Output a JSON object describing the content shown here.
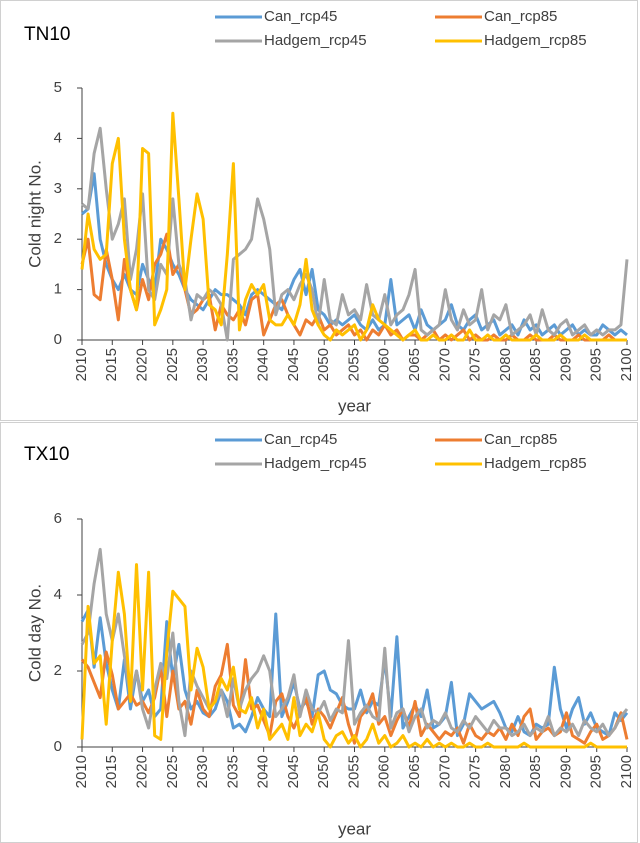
{
  "chart_data": [
    {
      "type": "line",
      "title": "TN10",
      "y_label": "Cold night No.",
      "x_label": "year",
      "legend": "top",
      "x": [
        2010,
        2011,
        2012,
        2013,
        2014,
        2015,
        2016,
        2017,
        2018,
        2019,
        2020,
        2021,
        2022,
        2023,
        2024,
        2025,
        2026,
        2027,
        2028,
        2029,
        2030,
        2031,
        2032,
        2033,
        2034,
        2035,
        2036,
        2037,
        2038,
        2039,
        2040,
        2041,
        2042,
        2043,
        2044,
        2045,
        2046,
        2047,
        2048,
        2049,
        2050,
        2051,
        2052,
        2053,
        2054,
        2055,
        2056,
        2057,
        2058,
        2059,
        2060,
        2061,
        2062,
        2063,
        2064,
        2065,
        2066,
        2067,
        2068,
        2069,
        2070,
        2071,
        2072,
        2073,
        2074,
        2075,
        2076,
        2077,
        2078,
        2079,
        2080,
        2081,
        2082,
        2083,
        2084,
        2085,
        2086,
        2087,
        2088,
        2089,
        2090,
        2091,
        2092,
        2093,
        2094,
        2095,
        2096,
        2097,
        2098,
        2099,
        2100
      ],
      "xlim": [
        2010,
        2100
      ],
      "xticks": [
        2010,
        2015,
        2020,
        2025,
        2030,
        2035,
        2040,
        2045,
        2050,
        2055,
        2060,
        2065,
        2070,
        2075,
        2080,
        2085,
        2090,
        2095,
        2100
      ],
      "ylim": [
        0,
        5
      ],
      "yticks": [
        0,
        1,
        2,
        3,
        4,
        5
      ],
      "series": [
        {
          "name": "Can_rcp45",
          "color": "#5b9bd5",
          "values": [
            2.5,
            2.6,
            3.3,
            2.0,
            1.5,
            1.2,
            1.0,
            1.3,
            1.0,
            0.9,
            1.5,
            1.2,
            1.0,
            2.0,
            1.8,
            1.5,
            1.3,
            1.0,
            0.8,
            0.7,
            0.6,
            0.8,
            1.0,
            0.9,
            0.9,
            0.8,
            0.7,
            0.5,
            0.9,
            1.0,
            0.9,
            0.8,
            0.7,
            0.6,
            0.9,
            1.2,
            1.4,
            0.9,
            1.4,
            0.6,
            0.5,
            0.3,
            0.4,
            0.3,
            0.4,
            0.5,
            0.3,
            0.2,
            0.4,
            0.2,
            0.3,
            1.2,
            0.3,
            0.4,
            0.5,
            0.2,
            0.6,
            0.3,
            0.2,
            0.3,
            0.4,
            0.7,
            0.3,
            0.2,
            0.4,
            0.5,
            0.2,
            0.3,
            0.4,
            0.1,
            0.2,
            0.3,
            0.1,
            0.4,
            0.2,
            0.3,
            0.1,
            0.2,
            0.3,
            0.1,
            0.2,
            0.3,
            0.1,
            0.2,
            0.1,
            0.1,
            0.3,
            0.2,
            0.1,
            0.2,
            0.1
          ]
        },
        {
          "name": "Can_rcp85",
          "color": "#ed7d31",
          "values": [
            1.5,
            2.0,
            0.9,
            0.8,
            1.8,
            1.2,
            0.4,
            1.6,
            1.0,
            0.6,
            1.2,
            0.8,
            1.5,
            1.7,
            2.1,
            1.3,
            1.5,
            1.0,
            0.5,
            0.6,
            0.8,
            0.9,
            0.2,
            0.7,
            0.5,
            0.4,
            0.6,
            0.3,
            0.8,
            0.9,
            0.1,
            0.4,
            0.7,
            0.8,
            0.5,
            0.3,
            0.1,
            0.4,
            0.3,
            0.5,
            0.2,
            0.3,
            0.1,
            0.2,
            0.3,
            0.1,
            0.2,
            0.0,
            0.2,
            0.1,
            0.3,
            0.1,
            0.2,
            0.0,
            0.1,
            0.1,
            0.0,
            0.1,
            0.2,
            0.0,
            0.1,
            0.0,
            0.1,
            0.2,
            0.0,
            0.1,
            0.0,
            0.0,
            0.1,
            0.0,
            0.0,
            0.1,
            0.0,
            0.0,
            0.1,
            0.0,
            0.0,
            0.0,
            0.1,
            0.0,
            0.0,
            0.0,
            0.1,
            0.0,
            0.0,
            0.0,
            0.0,
            0.1,
            0.0,
            0.0,
            0.0
          ]
        },
        {
          "name": "Hadgem_rcp45",
          "color": "#a5a5a5",
          "values": [
            2.7,
            2.6,
            3.7,
            4.2,
            3.0,
            2.0,
            2.3,
            2.8,
            1.2,
            1.8,
            2.9,
            1.0,
            0.8,
            1.5,
            1.3,
            2.8,
            1.5,
            1.2,
            0.4,
            0.9,
            0.8,
            1.0,
            0.9,
            0.7,
            0.0,
            1.6,
            1.7,
            1.8,
            2.0,
            2.8,
            2.4,
            1.8,
            0.5,
            0.9,
            1.0,
            0.8,
            1.1,
            1.3,
            1.0,
            0.3,
            1.2,
            0.4,
            0.3,
            0.9,
            0.5,
            0.6,
            0.4,
            1.1,
            0.5,
            0.4,
            0.9,
            0.3,
            0.5,
            0.6,
            0.9,
            1.4,
            0.2,
            0.1,
            0.2,
            0.3,
            1.0,
            0.4,
            0.2,
            0.6,
            0.3,
            0.4,
            1.0,
            0.2,
            0.5,
            0.4,
            0.7,
            0.1,
            0.2,
            0.3,
            0.5,
            0.1,
            0.6,
            0.2,
            0.1,
            0.3,
            0.4,
            0.1,
            0.2,
            0.3,
            0.1,
            0.2,
            0.1,
            0.2,
            0.2,
            0.3,
            1.6
          ]
        },
        {
          "name": "Hadgem_rcp85",
          "color": "#ffc000",
          "values": [
            1.4,
            2.5,
            1.8,
            1.6,
            1.7,
            3.5,
            4.0,
            2.0,
            1.0,
            0.6,
            3.8,
            3.7,
            0.3,
            0.6,
            1.0,
            4.5,
            2.8,
            1.0,
            2.0,
            2.9,
            2.4,
            0.7,
            0.6,
            0.3,
            1.7,
            3.5,
            0.2,
            0.8,
            1.1,
            0.9,
            1.1,
            0.4,
            0.3,
            0.3,
            0.5,
            0.3,
            0.7,
            1.6,
            0.6,
            0.3,
            0.1,
            0.0,
            0.2,
            0.1,
            0.2,
            0.3,
            0.0,
            0.2,
            0.7,
            0.4,
            0.3,
            0.2,
            0.1,
            0.0,
            0.1,
            0.2,
            0.0,
            0.0,
            0.1,
            0.0,
            0.0,
            0.1,
            0.0,
            0.0,
            0.2,
            0.0,
            0.0,
            0.1,
            0.0,
            0.0,
            0.1,
            0.0,
            0.0,
            0.0,
            0.0,
            0.1,
            0.0,
            0.0,
            0.0,
            0.1,
            0.0,
            0.0,
            0.0,
            0.1,
            0.0,
            0.0,
            0.0,
            0.0,
            0.0,
            0.0,
            0.0
          ]
        }
      ]
    },
    {
      "type": "line",
      "title": "TX10",
      "y_label": "Cold day No.",
      "x_label": "year",
      "legend": "top",
      "x": [
        2010,
        2011,
        2012,
        2013,
        2014,
        2015,
        2016,
        2017,
        2018,
        2019,
        2020,
        2021,
        2022,
        2023,
        2024,
        2025,
        2026,
        2027,
        2028,
        2029,
        2030,
        2031,
        2032,
        2033,
        2034,
        2035,
        2036,
        2037,
        2038,
        2039,
        2040,
        2041,
        2042,
        2043,
        2044,
        2045,
        2046,
        2047,
        2048,
        2049,
        2050,
        2051,
        2052,
        2053,
        2054,
        2055,
        2056,
        2057,
        2058,
        2059,
        2060,
        2061,
        2062,
        2063,
        2064,
        2065,
        2066,
        2067,
        2068,
        2069,
        2070,
        2071,
        2072,
        2073,
        2074,
        2075,
        2076,
        2077,
        2078,
        2079,
        2080,
        2081,
        2082,
        2083,
        2084,
        2085,
        2086,
        2087,
        2088,
        2089,
        2090,
        2091,
        2092,
        2093,
        2094,
        2095,
        2096,
        2097,
        2098,
        2099,
        2100
      ],
      "xlim": [
        2010,
        2100
      ],
      "xticks": [
        2010,
        2015,
        2020,
        2025,
        2030,
        2035,
        2040,
        2045,
        2050,
        2055,
        2060,
        2065,
        2070,
        2075,
        2080,
        2085,
        2090,
        2095,
        2100
      ],
      "ylim": [
        0,
        6
      ],
      "yticks": [
        0,
        2,
        4,
        6
      ],
      "series": [
        {
          "name": "Can_rcp45",
          "color": "#5b9bd5",
          "values": [
            3.3,
            3.6,
            2.1,
            3.4,
            2.2,
            1.5,
            1.0,
            2.3,
            1.0,
            2.0,
            1.2,
            1.5,
            0.8,
            1.0,
            3.3,
            1.8,
            2.7,
            1.5,
            1.0,
            1.2,
            0.9,
            0.8,
            1.0,
            1.5,
            1.2,
            0.5,
            0.6,
            0.4,
            0.8,
            1.3,
            1.0,
            0.8,
            3.5,
            0.8,
            1.2,
            1.7,
            1.0,
            1.2,
            0.8,
            1.9,
            2.0,
            1.5,
            1.4,
            1.1,
            1.0,
            1.0,
            1.5,
            0.9,
            1.2,
            1.1,
            2.3,
            0.8,
            2.9,
            0.5,
            0.8,
            1.1,
            0.8,
            1.5,
            0.5,
            0.6,
            0.8,
            1.7,
            0.3,
            0.6,
            1.4,
            1.2,
            1.0,
            1.1,
            1.2,
            0.9,
            0.5,
            0.4,
            0.8,
            0.4,
            0.3,
            0.6,
            0.5,
            0.6,
            2.1,
            1.0,
            0.5,
            1.0,
            1.3,
            0.6,
            0.9,
            0.5,
            0.4,
            0.3,
            0.9,
            0.7,
            0.9
          ]
        },
        {
          "name": "Can_rcp85",
          "color": "#ed7d31",
          "values": [
            2.3,
            2.1,
            1.7,
            1.3,
            2.5,
            1.9,
            1.0,
            1.2,
            1.4,
            1.1,
            1.2,
            0.9,
            1.3,
            2.1,
            0.8,
            2.0,
            1.0,
            1.2,
            0.6,
            1.5,
            1.0,
            0.8,
            1.6,
            1.9,
            2.7,
            1.1,
            0.8,
            2.3,
            1.0,
            1.1,
            0.7,
            0.3,
            1.2,
            1.4,
            0.8,
            0.5,
            0.9,
            1.3,
            0.6,
            1.0,
            0.8,
            0.5,
            0.9,
            1.3,
            0.6,
            0.1,
            0.8,
            1.0,
            1.4,
            0.6,
            0.8,
            0.3,
            0.7,
            1.0,
            0.5,
            1.2,
            0.3,
            0.6,
            0.4,
            0.2,
            0.4,
            0.3,
            0.5,
            0.1,
            0.6,
            0.3,
            0.2,
            0.4,
            0.3,
            0.5,
            0.2,
            0.6,
            0.3,
            0.8,
            1.0,
            0.2,
            0.4,
            0.5,
            0.3,
            0.4,
            0.9,
            0.3,
            0.2,
            0.1,
            0.4,
            0.6,
            0.2,
            0.3,
            0.5,
            0.9,
            0.2
          ]
        },
        {
          "name": "Hadgem_rcp45",
          "color": "#a5a5a5",
          "values": [
            2.7,
            3.0,
            4.3,
            5.2,
            3.5,
            2.8,
            3.5,
            2.4,
            1.3,
            2.0,
            1.0,
            0.5,
            1.5,
            2.2,
            1.8,
            3.0,
            1.2,
            0.3,
            2.0,
            1.6,
            1.3,
            1.0,
            1.2,
            1.5,
            0.8,
            1.8,
            1.0,
            1.5,
            1.8,
            2.0,
            2.4,
            2.0,
            0.8,
            1.0,
            1.3,
            1.9,
            0.8,
            1.5,
            1.0,
            0.9,
            1.2,
            0.7,
            1.0,
            0.9,
            2.8,
            0.6,
            0.9,
            1.1,
            0.8,
            0.7,
            2.6,
            0.5,
            0.9,
            1.0,
            0.4,
            0.8,
            1.0,
            0.5,
            0.7,
            0.6,
            0.9,
            0.5,
            0.4,
            0.7,
            0.5,
            0.8,
            0.6,
            0.4,
            0.7,
            0.5,
            0.5,
            0.3,
            0.4,
            0.6,
            0.3,
            0.5,
            0.4,
            0.8,
            0.3,
            0.5,
            0.4,
            0.6,
            0.3,
            0.7,
            0.5,
            0.4,
            0.6,
            0.3,
            0.5,
            0.8,
            1.0
          ]
        },
        {
          "name": "Hadgem_rcp85",
          "color": "#ffc000",
          "values": [
            0.2,
            3.7,
            2.2,
            2.4,
            0.6,
            2.8,
            4.6,
            3.5,
            1.2,
            4.8,
            1.5,
            4.6,
            0.3,
            0.2,
            2.5,
            4.1,
            3.9,
            3.7,
            1.5,
            2.6,
            2.1,
            1.0,
            1.2,
            1.8,
            1.5,
            2.1,
            1.0,
            0.9,
            1.3,
            0.5,
            1.0,
            0.2,
            0.4,
            0.6,
            0.2,
            1.3,
            0.3,
            0.6,
            0.4,
            0.9,
            0.2,
            0.0,
            0.3,
            0.4,
            0.1,
            0.3,
            0.0,
            0.2,
            0.6,
            0.1,
            0.3,
            0.0,
            0.1,
            0.3,
            0.0,
            0.1,
            0.0,
            0.2,
            0.0,
            0.1,
            0.0,
            0.1,
            0.0,
            0.0,
            0.1,
            0.0,
            0.0,
            0.1,
            0.0,
            0.0,
            0.0,
            0.0,
            0.0,
            0.1,
            0.0,
            0.0,
            0.0,
            0.0,
            0.0,
            0.0,
            0.0,
            0.0,
            0.0,
            0.0,
            0.1,
            0.0,
            0.0,
            0.0,
            0.0,
            0.0,
            0.0
          ]
        }
      ]
    }
  ]
}
